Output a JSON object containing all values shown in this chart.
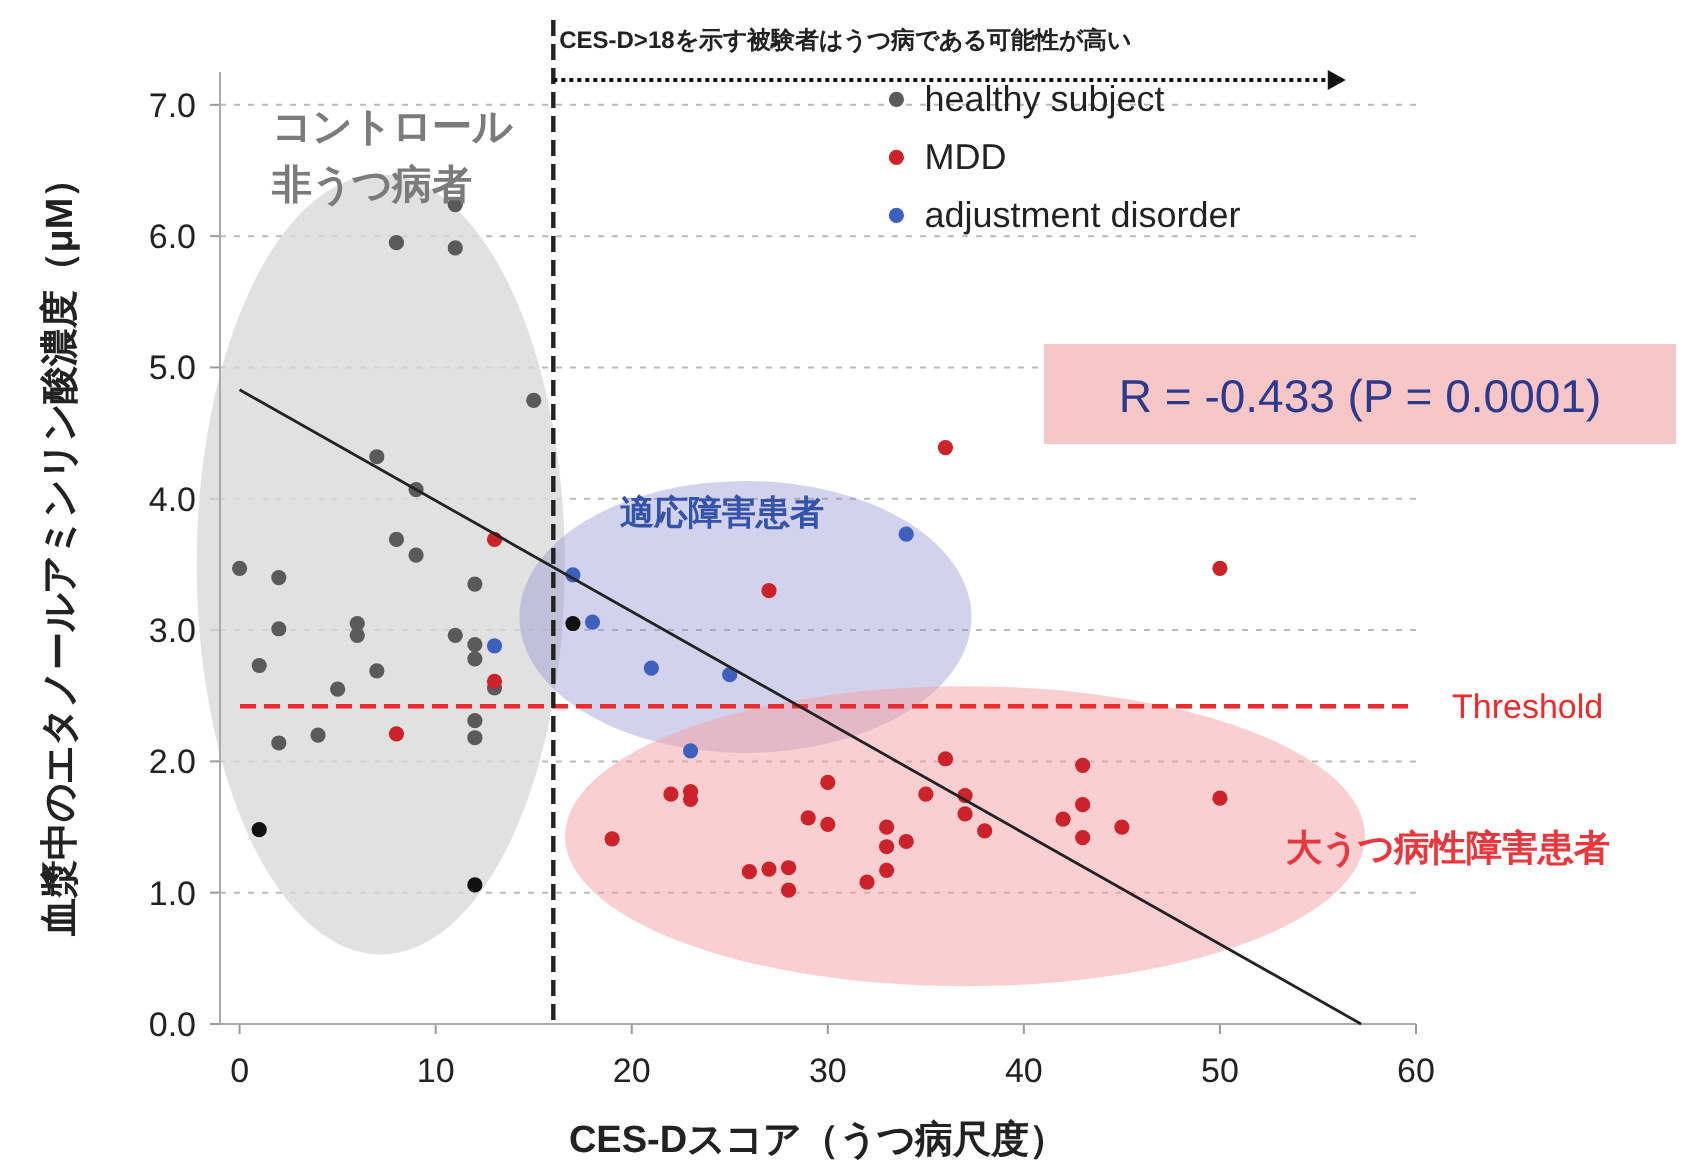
{
  "chart_data": {
    "type": "scatter",
    "xlabel": "CES-Dスコア（うつ病尺度）",
    "ylabel": "血漿中のエタノールアミンリン酸濃度（μM）",
    "xlim": [
      -1,
      60
    ],
    "ylim": [
      0,
      7.25
    ],
    "xticks": [
      0,
      10,
      20,
      30,
      40,
      50,
      60
    ],
    "yticks": [
      {
        "value": 0,
        "label": "0.0"
      },
      {
        "value": 1,
        "label": "1.0"
      },
      {
        "value": 2,
        "label": "2.0"
      },
      {
        "value": 3,
        "label": "3.0"
      },
      {
        "value": 4,
        "label": "4.0"
      },
      {
        "value": 5,
        "label": "5.0"
      },
      {
        "value": 6,
        "label": "6.0"
      },
      {
        "value": 7,
        "label": "7.0"
      }
    ],
    "grid": "y",
    "legend": "top right",
    "marker": "circle",
    "series": [
      {
        "name": "healthy subject",
        "color": "#5a5a5a",
        "x": [
          11,
          8,
          11,
          15,
          7,
          9,
          8,
          9,
          0,
          2,
          12,
          2,
          6,
          6,
          11,
          12,
          12,
          1,
          7,
          13,
          5,
          12,
          4,
          2,
          12,
          1,
          12,
          17
        ],
        "values": [
          6.24,
          5.95,
          5.91,
          4.75,
          4.32,
          4.07,
          3.69,
          3.57,
          3.47,
          3.4,
          3.35,
          3.01,
          3.05,
          2.96,
          2.96,
          2.89,
          2.78,
          2.73,
          2.69,
          2.56,
          2.55,
          2.31,
          2.2,
          2.14,
          2.18,
          1.48,
          1.06,
          3.05
        ],
        "colors": [
          "#5a5a5a",
          "#5a5a5a",
          "#5a5a5a",
          "#5a5a5a",
          "#5a5a5a",
          "#5a5a5a",
          "#5a5a5a",
          "#5a5a5a",
          "#5a5a5a",
          "#5a5a5a",
          "#5a5a5a",
          "#5a5a5a",
          "#5a5a5a",
          "#5a5a5a",
          "#5a5a5a",
          "#5a5a5a",
          "#5a5a5a",
          "#5a5a5a",
          "#5a5a5a",
          "#5a5a5a",
          "#5a5a5a",
          "#5a5a5a",
          "#5a5a5a",
          "#5a5a5a",
          "#5a5a5a",
          "#111111",
          "#111111",
          "#111111"
        ]
      },
      {
        "name": "MDD",
        "color": "#cc2229",
        "x": [
          13,
          13,
          8,
          27,
          36,
          50,
          19,
          22,
          23,
          23,
          26,
          27,
          28,
          28,
          29,
          30,
          30,
          32,
          33,
          33,
          33,
          34,
          35,
          36,
          37,
          37,
          38,
          43,
          43,
          42,
          43,
          45,
          50
        ],
        "values": [
          3.69,
          2.61,
          2.21,
          3.3,
          4.39,
          3.47,
          1.41,
          1.75,
          1.77,
          1.71,
          1.16,
          1.18,
          1.19,
          1.02,
          1.57,
          1.84,
          1.52,
          1.08,
          1.5,
          1.35,
          1.17,
          1.39,
          1.75,
          2.02,
          1.74,
          1.6,
          1.47,
          1.97,
          1.67,
          1.56,
          1.42,
          1.5,
          1.72
        ]
      },
      {
        "name": "adjustment disorder",
        "color": "#3f5fbf",
        "x": [
          13,
          17,
          18,
          21,
          25,
          23,
          34
        ],
        "values": [
          2.88,
          3.42,
          3.06,
          2.71,
          2.66,
          2.08,
          3.73
        ]
      },
      {
        "type": "line",
        "marker": "none",
        "color": "#222222",
        "x": [
          0,
          57.2
        ],
        "values": [
          4.83,
          0
        ]
      }
    ],
    "ref_lines": [
      {
        "axis": "y",
        "value": 2.42,
        "label": "Threshold",
        "color": "#ee2a2a",
        "line_style": "dashed"
      },
      {
        "axis": "x",
        "value": 16,
        "color": "#222222",
        "line_style": "dashed"
      }
    ],
    "annotations": [
      "CES-D>18を示す被験者はうつ病である可能性が高い",
      "R = -0.433 (P = 0.0001)",
      "コントロール",
      "非うつ病者",
      "適応障害患者",
      "大うつ病性障害患者"
    ]
  }
}
